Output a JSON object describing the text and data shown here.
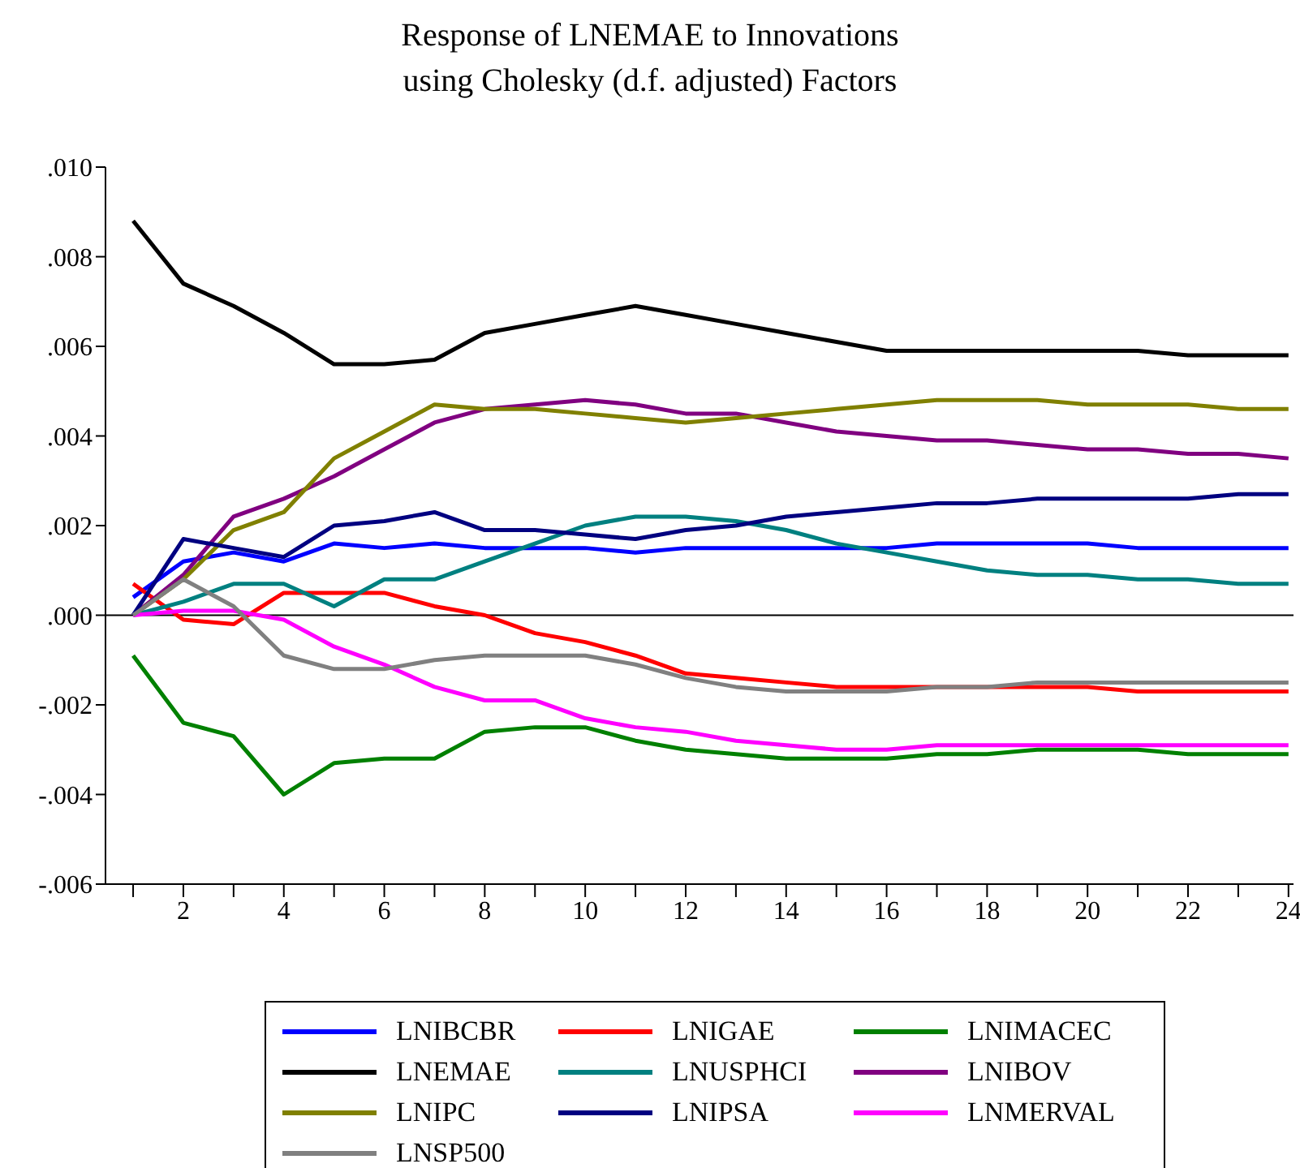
{
  "chart_data": {
    "type": "line",
    "title": "Response of LNEMAE to Innovations\nusing Cholesky (d.f. adjusted) Factors",
    "x": [
      1,
      2,
      3,
      4,
      5,
      6,
      7,
      8,
      9,
      10,
      11,
      12,
      13,
      14,
      15,
      16,
      17,
      18,
      19,
      20,
      21,
      22,
      23,
      24
    ],
    "xlim": [
      0.45,
      24.1
    ],
    "xticks": [
      {
        "value": 1,
        "label": null
      },
      2,
      {
        "value": 3,
        "label": null
      },
      4,
      {
        "value": 5,
        "label": null
      },
      6,
      {
        "value": 7,
        "label": null
      },
      8,
      {
        "value": 9,
        "label": null
      },
      10,
      {
        "value": 11,
        "label": null
      },
      12,
      {
        "value": 13,
        "label": null
      },
      14,
      {
        "value": 15,
        "label": null
      },
      16,
      {
        "value": 17,
        "label": null
      },
      18,
      {
        "value": 19,
        "label": null
      },
      20,
      {
        "value": 21,
        "label": null
      },
      22,
      {
        "value": 23,
        "label": null
      },
      24
    ],
    "ylim": [
      -0.006,
      0.01
    ],
    "yticks": [
      {
        "value": -0.006,
        "label": "-.006"
      },
      {
        "value": -0.004,
        "label": "-.004"
      },
      {
        "value": -0.002,
        "label": "-.002"
      },
      {
        "value": 0,
        "label": ".000"
      },
      {
        "value": 0.002,
        "label": ".002"
      },
      {
        "value": 0.004,
        "label": ".004"
      },
      {
        "value": 0.006,
        "label": ".006"
      },
      {
        "value": 0.008,
        "label": ".008"
      },
      {
        "value": 0.01,
        "label": ".010"
      }
    ],
    "ref_lines": [
      {
        "axis": "y",
        "value": 0,
        "color": "#000000"
      }
    ],
    "legend": "bottom",
    "series": [
      {
        "name": "LNIBCBR",
        "color": "#0000ff",
        "values": [
          0.0004,
          0.0012,
          0.0014,
          0.0012,
          0.0016,
          0.0015,
          0.0016,
          0.0015,
          0.0015,
          0.0015,
          0.0014,
          0.0015,
          0.0015,
          0.0015,
          0.0015,
          0.0015,
          0.0016,
          0.0016,
          0.0016,
          0.0016,
          0.0015,
          0.0015,
          0.0015,
          0.0015
        ]
      },
      {
        "name": "LNIGAE",
        "color": "#ff0000",
        "values": [
          0.0007,
          -0.0001,
          -0.0002,
          0.0005,
          0.0005,
          0.0005,
          0.0002,
          0.0,
          -0.0004,
          -0.0006,
          -0.0009,
          -0.0013,
          -0.0014,
          -0.0015,
          -0.0016,
          -0.0016,
          -0.0016,
          -0.0016,
          -0.0016,
          -0.0016,
          -0.0017,
          -0.0017,
          -0.0017,
          -0.0017
        ]
      },
      {
        "name": "LNIMACEC",
        "color": "#008000",
        "values": [
          -0.0009,
          -0.0024,
          -0.0027,
          -0.004,
          -0.0033,
          -0.0032,
          -0.0032,
          -0.0026,
          -0.0025,
          -0.0025,
          -0.0028,
          -0.003,
          -0.0031,
          -0.0032,
          -0.0032,
          -0.0032,
          -0.0031,
          -0.0031,
          -0.003,
          -0.003,
          -0.003,
          -0.0031,
          -0.0031,
          -0.0031
        ]
      },
      {
        "name": "LNEMAE",
        "color": "#000000",
        "values": [
          0.0088,
          0.0074,
          0.0069,
          0.0063,
          0.0056,
          0.0056,
          0.0057,
          0.0063,
          0.0065,
          0.0067,
          0.0069,
          0.0067,
          0.0065,
          0.0063,
          0.0061,
          0.0059,
          0.0059,
          0.0059,
          0.0059,
          0.0059,
          0.0059,
          0.0058,
          0.0058,
          0.0058
        ]
      },
      {
        "name": "LNUSPHCI",
        "color": "#008080",
        "values": [
          0,
          0.0003,
          0.0007,
          0.0007,
          0.0002,
          0.0008,
          0.0008,
          0.0012,
          0.0016,
          0.002,
          0.0022,
          0.0022,
          0.0021,
          0.0019,
          0.0016,
          0.0014,
          0.0012,
          0.001,
          0.0009,
          0.0009,
          0.0008,
          0.0008,
          0.0007,
          0.0007
        ]
      },
      {
        "name": "LNIBOV",
        "color": "#800080",
        "values": [
          0,
          0.0009,
          0.0022,
          0.0026,
          0.0031,
          0.0037,
          0.0043,
          0.0046,
          0.0047,
          0.0048,
          0.0047,
          0.0045,
          0.0045,
          0.0043,
          0.0041,
          0.004,
          0.0039,
          0.0039,
          0.0038,
          0.0037,
          0.0037,
          0.0036,
          0.0036,
          0.0035
        ]
      },
      {
        "name": "LNIPC",
        "color": "#808000",
        "values": [
          0,
          0.0008,
          0.0019,
          0.0023,
          0.0035,
          0.0041,
          0.0047,
          0.0046,
          0.0046,
          0.0045,
          0.0044,
          0.0043,
          0.0044,
          0.0045,
          0.0046,
          0.0047,
          0.0048,
          0.0048,
          0.0048,
          0.0047,
          0.0047,
          0.0047,
          0.0046,
          0.0046
        ]
      },
      {
        "name": "LNIPSA",
        "color": "#000080",
        "values": [
          0,
          0.0017,
          0.0015,
          0.0013,
          0.002,
          0.0021,
          0.0023,
          0.0019,
          0.0019,
          0.0018,
          0.0017,
          0.0019,
          0.002,
          0.0022,
          0.0023,
          0.0024,
          0.0025,
          0.0025,
          0.0026,
          0.0026,
          0.0026,
          0.0026,
          0.0027,
          0.0027
        ]
      },
      {
        "name": "LNMERVAL",
        "color": "#ff00ff",
        "values": [
          0,
          0.0001,
          0.0001,
          -0.0001,
          -0.0007,
          -0.0011,
          -0.0016,
          -0.0019,
          -0.0019,
          -0.0023,
          -0.0025,
          -0.0026,
          -0.0028,
          -0.0029,
          -0.003,
          -0.003,
          -0.0029,
          -0.0029,
          -0.0029,
          -0.0029,
          -0.0029,
          -0.0029,
          -0.0029,
          -0.0029
        ]
      },
      {
        "name": "LNSP500",
        "color": "#808080",
        "values": [
          0,
          0.0008,
          0.0002,
          -0.0009,
          -0.0012,
          -0.0012,
          -0.001,
          -0.0009,
          -0.0009,
          -0.0009,
          -0.0011,
          -0.0014,
          -0.0016,
          -0.0017,
          -0.0017,
          -0.0017,
          -0.0016,
          -0.0016,
          -0.0015,
          -0.0015,
          -0.0015,
          -0.0015,
          -0.0015,
          -0.0015
        ]
      }
    ]
  }
}
